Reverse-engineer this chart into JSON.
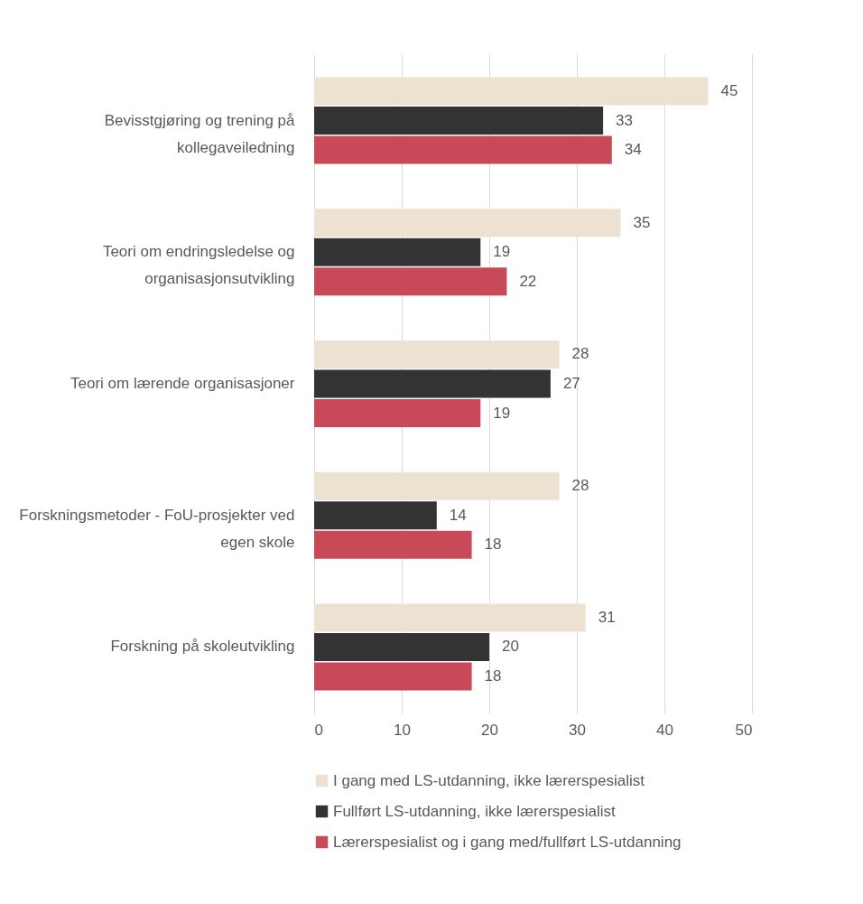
{
  "chart_data": {
    "type": "bar",
    "orientation": "horizontal",
    "categories": [
      "Bevisstgjøring og trening på kollegaveiledning",
      "Teori om endringsledelse og organisasjonsutvikling",
      "Teori om lærende organisasjoner",
      "Forskningsmetoder - FoU-prosjekter ved egen skole",
      "Forskning på skoleutvikling"
    ],
    "series": [
      {
        "name": "I gang med LS-utdanning, ikke lærerspesialist",
        "color": "#ede1d2",
        "values": [
          45,
          35,
          28,
          28,
          31
        ]
      },
      {
        "name": "Fullført LS-utdanning, ikke lærerspesialist",
        "color": "#333333",
        "values": [
          33,
          19,
          27,
          14,
          20
        ]
      },
      {
        "name": "Lærerspesialist og i gang med/fullført LS-utdanning",
        "color": "#c84a58",
        "values": [
          34,
          22,
          19,
          18,
          18
        ]
      }
    ],
    "xlim": [
      0,
      50
    ],
    "xticks": [
      0,
      10,
      20,
      30,
      40,
      50
    ],
    "grid": "x",
    "legend": "bottom",
    "data_labels": true
  }
}
